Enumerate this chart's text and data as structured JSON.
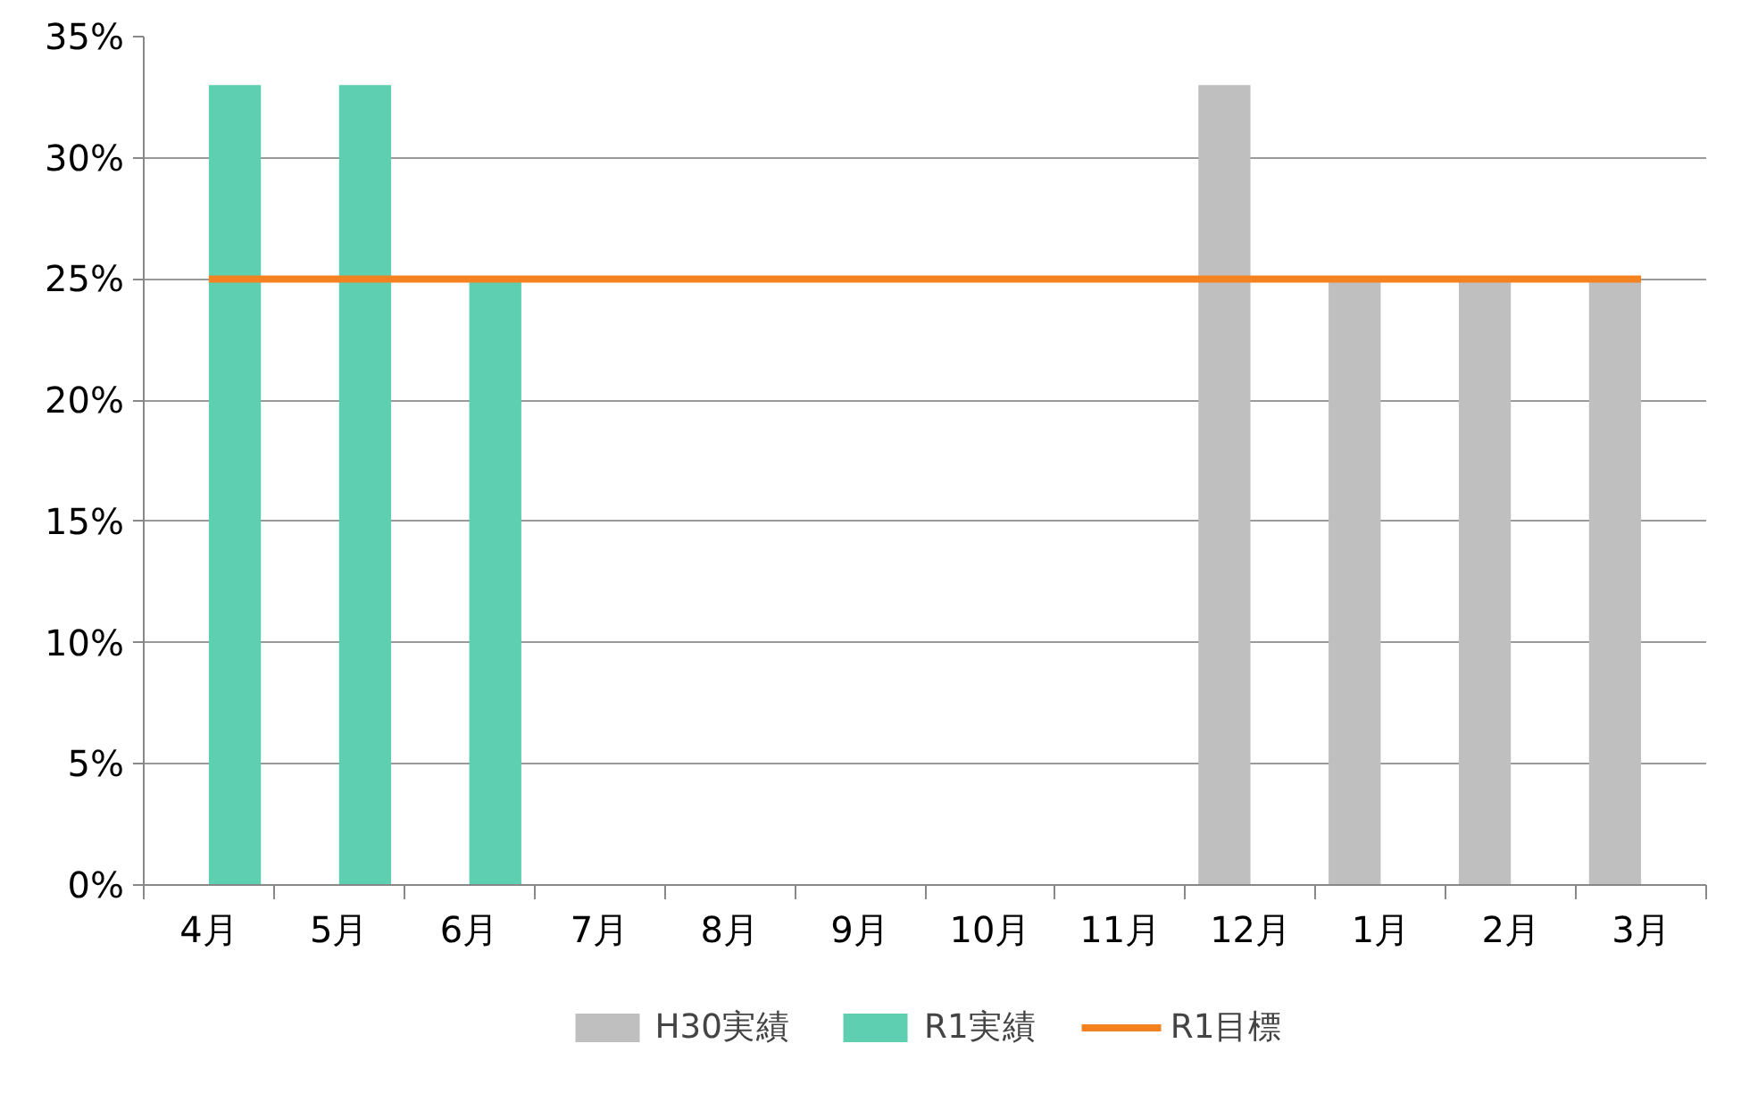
{
  "chart_data": {
    "type": "bar",
    "categories": [
      "4月",
      "5月",
      "6月",
      "7月",
      "8月",
      "9月",
      "10月",
      "11月",
      "12月",
      "1月",
      "2月",
      "3月"
    ],
    "series": [
      {
        "name": "H30実績",
        "color": "#bfbfbf",
        "values": [
          null,
          null,
          null,
          null,
          null,
          null,
          null,
          null,
          33,
          25,
          25,
          25
        ]
      },
      {
        "name": "R1実績",
        "color": "#5ecfb1",
        "values": [
          33,
          33,
          25,
          null,
          null,
          null,
          null,
          null,
          null,
          null,
          null,
          null
        ]
      },
      {
        "name": "R1目標",
        "color": "#f58220",
        "type": "line",
        "values": [
          25,
          25,
          25,
          25,
          25,
          25,
          25,
          25,
          25,
          25,
          25,
          25
        ]
      }
    ],
    "ylim": [
      0,
      35
    ],
    "yticks": [
      {
        "value": 0,
        "label": "0%"
      },
      {
        "value": 5,
        "label": "5%"
      },
      {
        "value": 10,
        "label": "10%"
      },
      {
        "value": 15,
        "label": "15%"
      },
      {
        "value": 20,
        "label": "20%"
      },
      {
        "value": 25,
        "label": "25%"
      },
      {
        "value": 30,
        "label": "30%"
      },
      {
        "value": 35,
        "label": "35%"
      }
    ],
    "grid": "y",
    "legend": "bottom",
    "marker": "none",
    "line_style": "solid"
  }
}
